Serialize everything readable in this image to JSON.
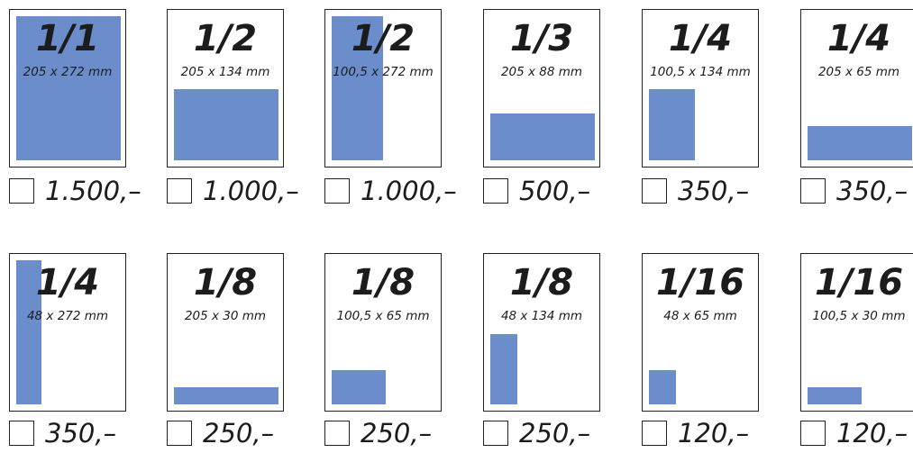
{
  "colors": {
    "fill": "#6b8dcb",
    "border": "#222222",
    "text": "#1c1c1c"
  },
  "ads": [
    {
      "fraction": "1/1",
      "dims": "205 x 272 mm",
      "price": "1.500,–"
    },
    {
      "fraction": "1/2",
      "dims": "205 x 134 mm",
      "price": "1.000,–"
    },
    {
      "fraction": "1/2",
      "dims": "100,5 x 272 mm",
      "price": "1.000,–"
    },
    {
      "fraction": "1/3",
      "dims": "205 x 88 mm",
      "price": "500,–"
    },
    {
      "fraction": "1/4",
      "dims": "100,5 x 134 mm",
      "price": "350,–"
    },
    {
      "fraction": "1/4",
      "dims": "205 x 65 mm",
      "price": "350,–"
    },
    {
      "fraction": "1/4",
      "dims": "48 x 272 mm",
      "price": "350,–"
    },
    {
      "fraction": "1/8",
      "dims": "205 x 30 mm",
      "price": "250,–"
    },
    {
      "fraction": "1/8",
      "dims": "100,5 x 65 mm",
      "price": "250,–"
    },
    {
      "fraction": "1/8",
      "dims": "48 x 134 mm",
      "price": "250,–"
    },
    {
      "fraction": "1/16",
      "dims": "48 x 65 mm",
      "price": "120,–"
    },
    {
      "fraction": "1/16",
      "dims": "100,5 x 30 mm",
      "price": "120,–"
    }
  ]
}
